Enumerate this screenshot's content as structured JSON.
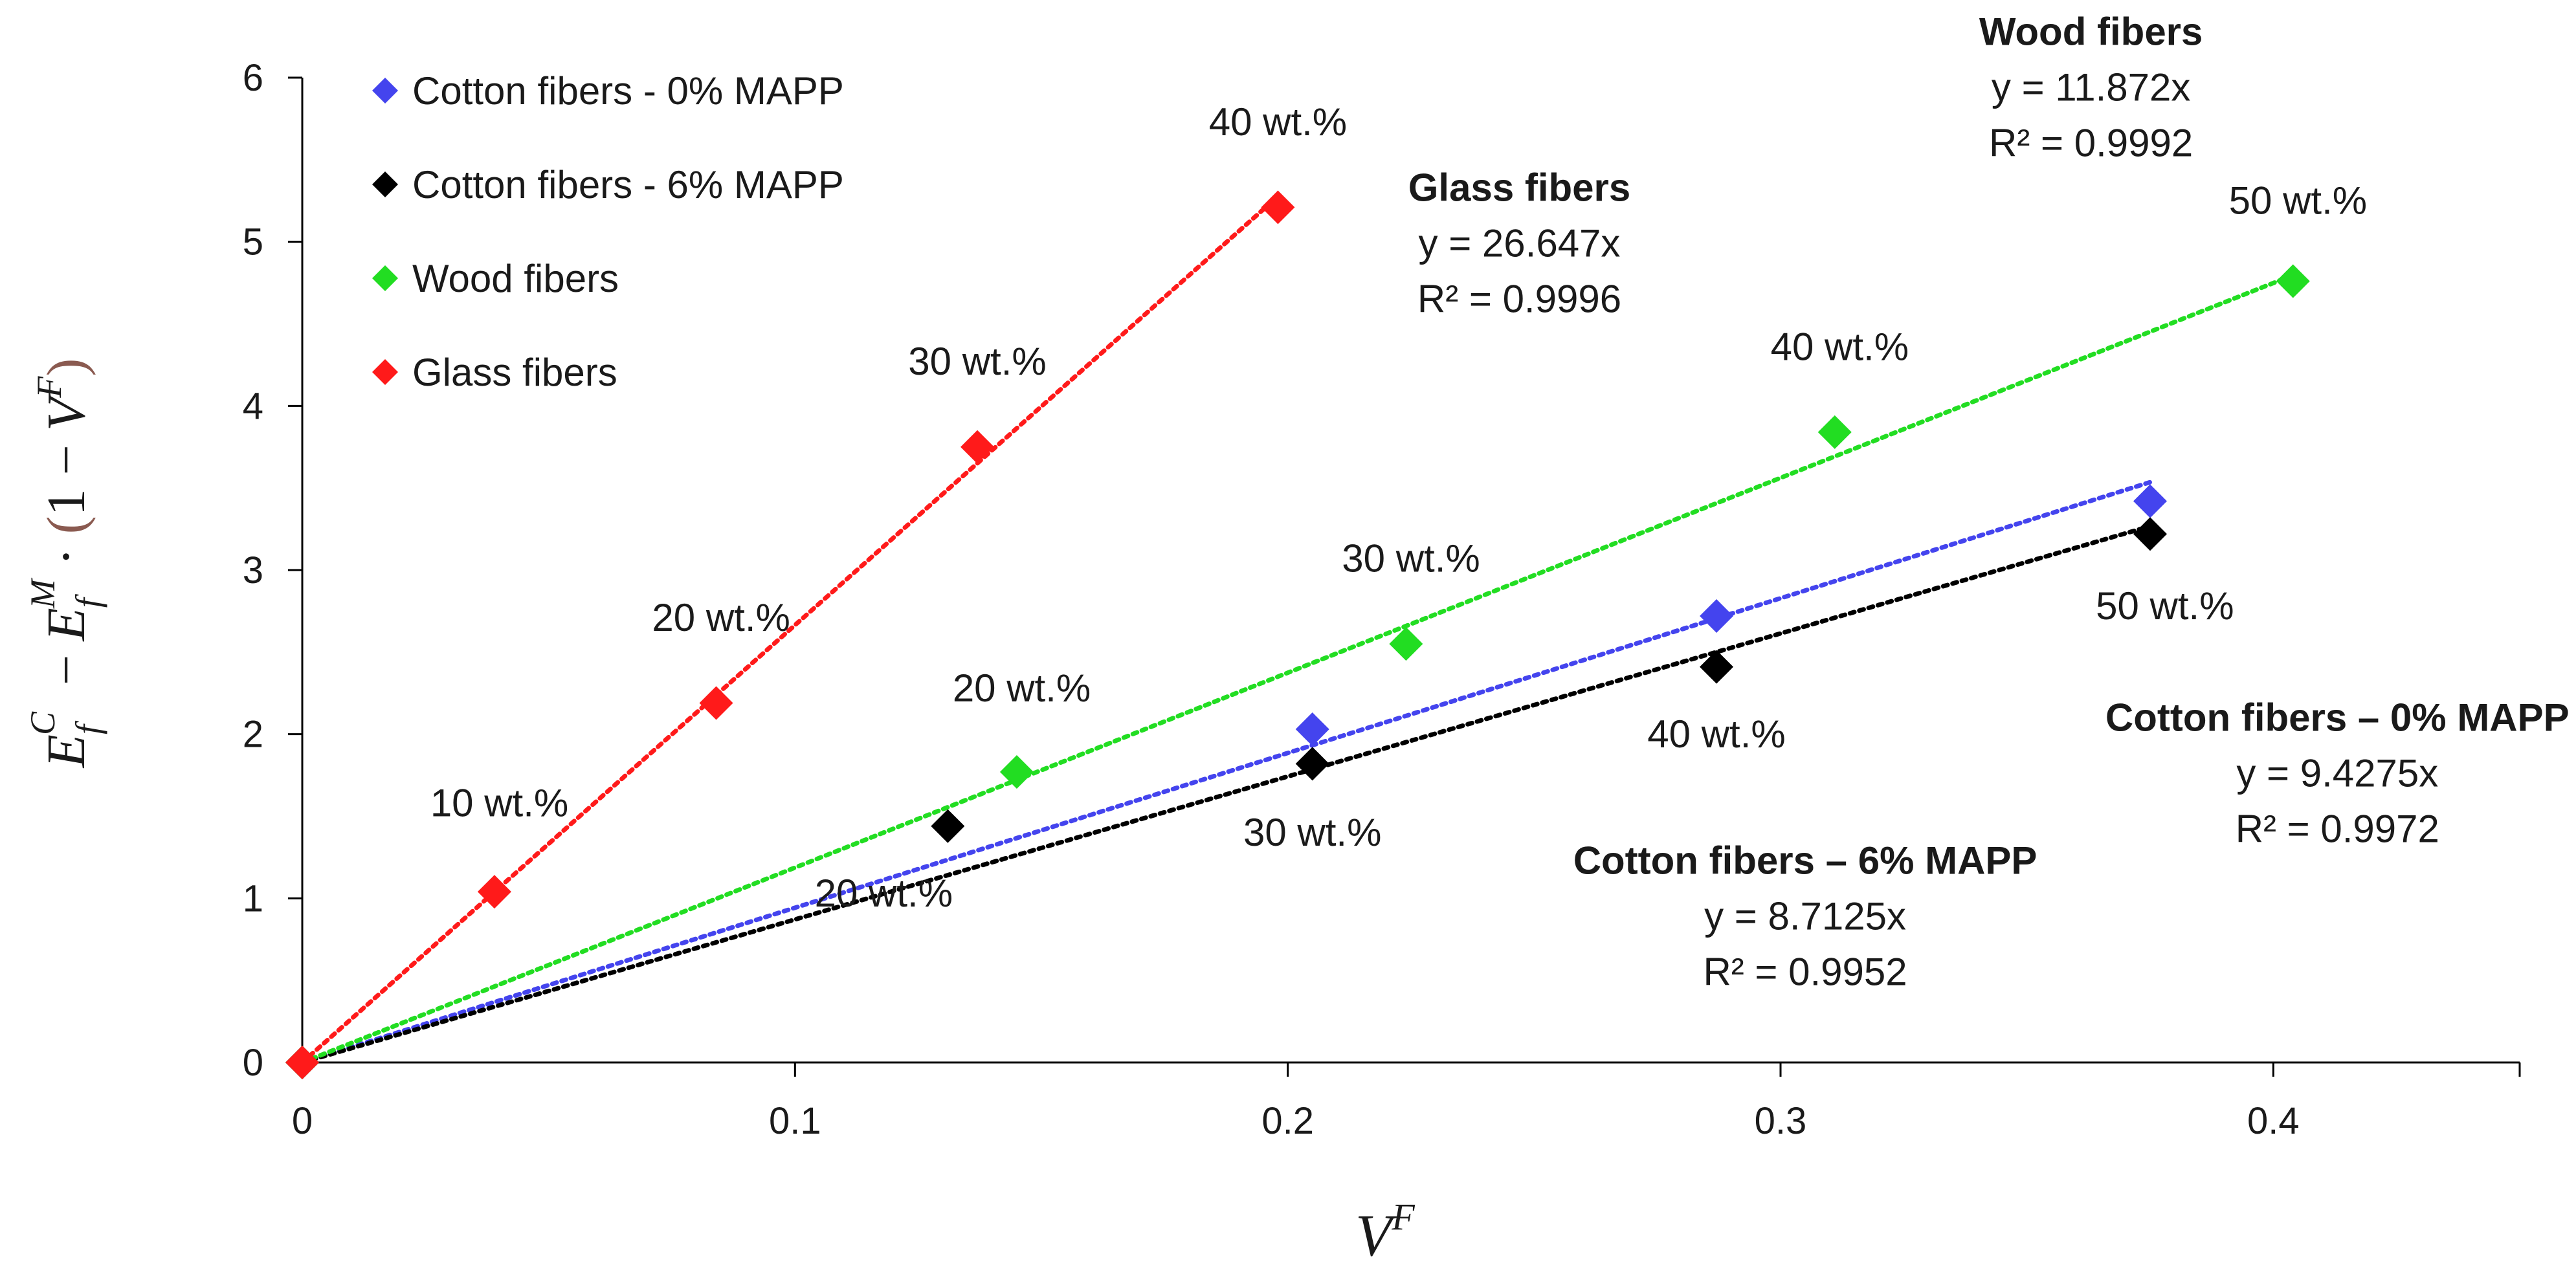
{
  "chart_data": {
    "type": "scatter",
    "xlabel": "V^F",
    "ylabel": "E_f^C − E_f^M · (1 − V^F)",
    "xlim": [
      0,
      0.45
    ],
    "ylim": [
      0,
      6
    ],
    "xticks": [
      0,
      0.1,
      0.2,
      0.3,
      0.4
    ],
    "yticks": [
      0,
      1,
      2,
      3,
      4,
      5,
      6
    ],
    "legend_position": "top-left",
    "series": [
      {
        "name": "Cotton fibers - 0% MAPP",
        "color": "#4444ee",
        "marker": "diamond",
        "trend_slope": 9.4275,
        "trend_x_end": 0.375,
        "points": [
          [
            0,
            0
          ],
          [
            0.205,
            2.03
          ],
          [
            0.287,
            2.72
          ],
          [
            0.375,
            3.42
          ]
        ]
      },
      {
        "name": "Cotton fibers - 6% MAPP",
        "color": "#000000",
        "marker": "diamond",
        "trend_slope": 8.7125,
        "trend_x_end": 0.375,
        "points": [
          [
            0,
            0
          ],
          [
            0.131,
            1.44
          ],
          [
            0.205,
            1.82
          ],
          [
            0.287,
            2.41
          ],
          [
            0.375,
            3.22
          ]
        ]
      },
      {
        "name": "Wood fibers",
        "color": "#22dd22",
        "marker": "diamond",
        "trend_slope": 11.872,
        "trend_x_end": 0.404,
        "points": [
          [
            0,
            0
          ],
          [
            0.145,
            1.77
          ],
          [
            0.224,
            2.55
          ],
          [
            0.311,
            3.84
          ],
          [
            0.404,
            4.76
          ]
        ]
      },
      {
        "name": "Glass fibers",
        "color": "#ff1a1a",
        "marker": "diamond",
        "trend_slope": 26.647,
        "trend_x_end": 0.198,
        "points": [
          [
            0,
            0
          ],
          [
            0.039,
            1.04
          ],
          [
            0.084,
            2.19
          ],
          [
            0.137,
            3.75
          ],
          [
            0.198,
            5.21
          ]
        ]
      }
    ],
    "point_labels": [
      {
        "text": "10 wt.%",
        "x": 0.04,
        "y": 1.5
      },
      {
        "text": "20 wt.%",
        "x": 0.085,
        "y": 2.63
      },
      {
        "text": "30 wt.%",
        "x": 0.137,
        "y": 4.19
      },
      {
        "text": "40 wt.%",
        "x": 0.198,
        "y": 5.65
      },
      {
        "text": "20 wt.%",
        "x": 0.146,
        "y": 2.2
      },
      {
        "text": "30 wt.%",
        "x": 0.225,
        "y": 2.99
      },
      {
        "text": "40 wt.%",
        "x": 0.312,
        "y": 4.28
      },
      {
        "text": "50 wt.%",
        "x": 0.405,
        "y": 5.17
      },
      {
        "text": "20 wt.%",
        "x": 0.118,
        "y": 0.95
      },
      {
        "text": "30 wt.%",
        "x": 0.205,
        "y": 1.32
      },
      {
        "text": "40 wt.%",
        "x": 0.287,
        "y": 1.92
      },
      {
        "text": "50 wt.%",
        "x": 0.378,
        "y": 2.7
      }
    ],
    "equations": [
      {
        "series": "Glass fibers",
        "title": "Glass fibers",
        "eq": "y = 26.647x",
        "r2": "R² = 0.9996",
        "x": 0.247,
        "y": 5.25
      },
      {
        "series": "Wood fibers",
        "title": "Wood fibers",
        "eq": "y = 11.872x",
        "r2": "R² = 0.9992",
        "x": 0.363,
        "y": 6.2
      },
      {
        "series": "Cotton fibers - 0% MAPP",
        "title": "Cotton fibers – 0% MAPP",
        "eq": "y = 9.4275x",
        "r2": "R² = 0.9972",
        "x": 0.413,
        "y": 2.02
      },
      {
        "series": "Cotton fibers - 6% MAPP",
        "title": "Cotton fibers – 6% MAPP",
        "eq": "y = 8.7125x",
        "r2": "R² = 0.9952",
        "x": 0.305,
        "y": 1.15
      }
    ]
  }
}
